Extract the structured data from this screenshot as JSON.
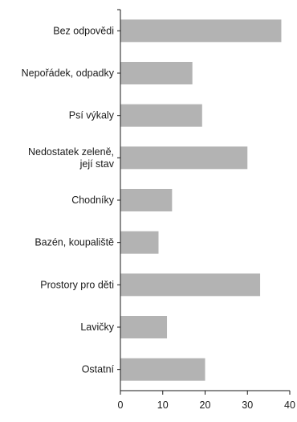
{
  "chart_data": {
    "type": "bar",
    "orientation": "horizontal",
    "title": "",
    "xlabel": "",
    "ylabel": "",
    "categories": [
      [
        "Bez odpovědi"
      ],
      [
        "Nepořádek, odpadky"
      ],
      [
        "Psí výkaly"
      ],
      [
        "Nedostatek zeleně,",
        "její stav"
      ],
      [
        "Chodníky"
      ],
      [
        "Bazén, koupaliště"
      ],
      [
        "Prostory pro děti"
      ],
      [
        "Lavičky"
      ],
      [
        "Ostatní"
      ]
    ],
    "values": [
      38,
      17,
      19.3,
      30,
      12.2,
      9,
      33,
      11,
      20
    ],
    "xlim": [
      0,
      40
    ],
    "xticks": [
      "0",
      "10",
      "20",
      "30",
      "40"
    ],
    "bar_color": "#b3b3b3",
    "axis_color": "#1a1a1a",
    "grid": false,
    "legend": "none"
  }
}
